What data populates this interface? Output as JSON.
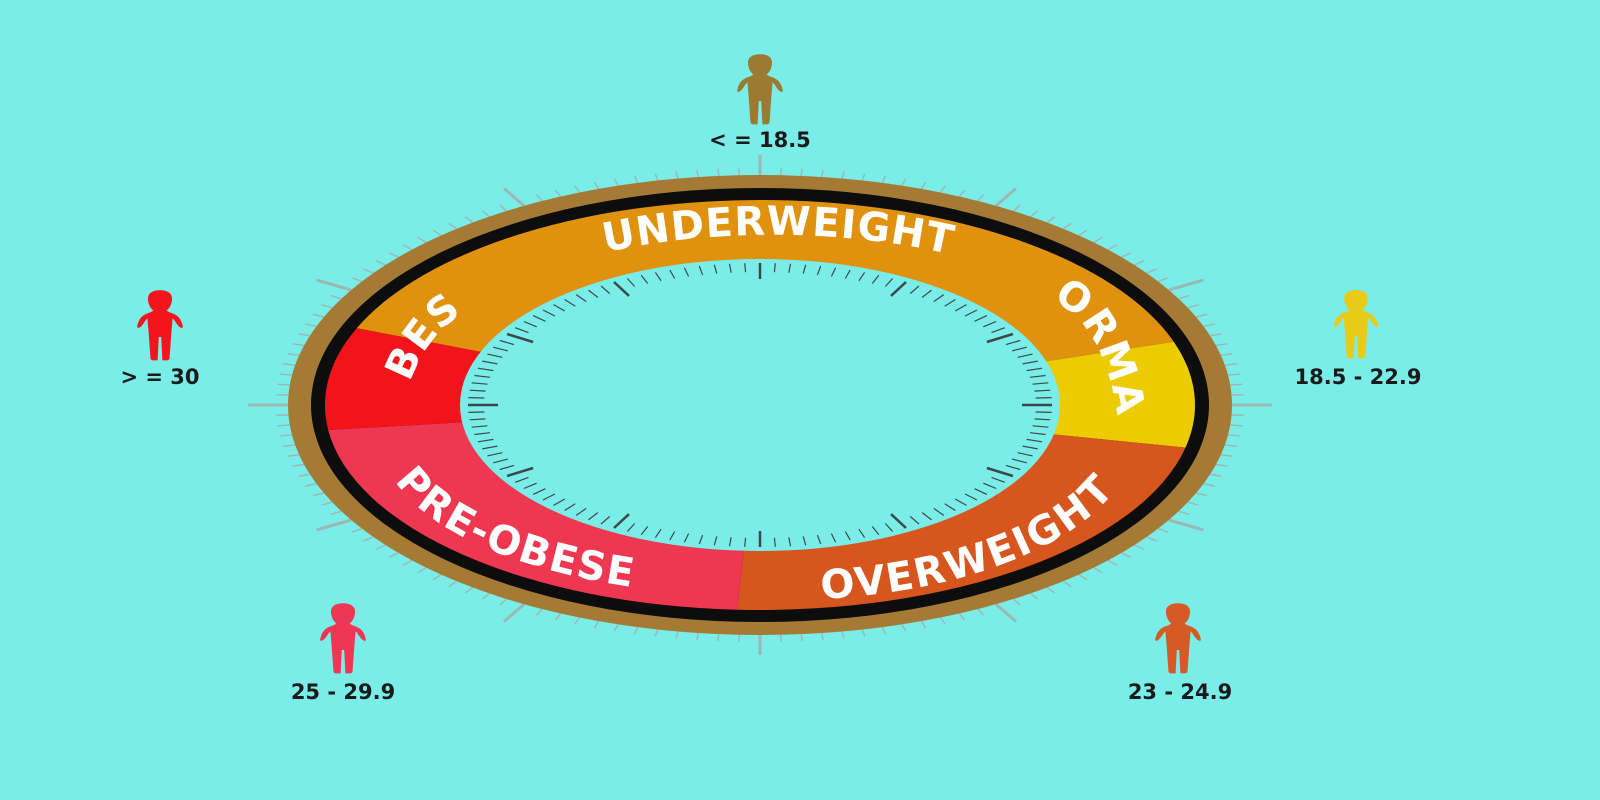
{
  "colors": {
    "background": "#7bede8",
    "outer_rim": "#a57a35",
    "inner_rim": "#0d0d0d",
    "dial_ticks": "#3e4848",
    "outer_ticks": "#9cb8b5"
  },
  "categories": [
    {
      "id": "underweight",
      "label": "UNDERWEIGHT",
      "range": "< = 18.5",
      "color": "#e0920e",
      "figure_color": "#9b7a32"
    },
    {
      "id": "normal",
      "label": "NORMAL",
      "range": "18.5 - 22.9",
      "color": "#eccc00",
      "figure_color": "#e8cb16"
    },
    {
      "id": "overweight",
      "label": "OVERWEIGHT",
      "range": "23 - 24.9",
      "color": "#d6561e",
      "figure_color": "#d65a26"
    },
    {
      "id": "pre-obese",
      "label": "PRE-OBESE",
      "range": "25 - 29.9",
      "color": "#ee3751",
      "figure_color": "#ee3753"
    },
    {
      "id": "obese",
      "label": "OBESE",
      "range": "> = 30",
      "color": "#f2141a",
      "figure_color": "#f2161c"
    }
  ],
  "figure_icon": "person-icon"
}
